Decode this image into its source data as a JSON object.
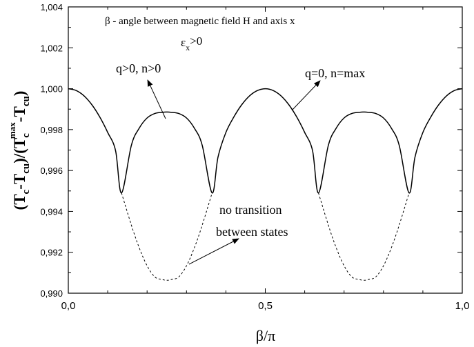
{
  "chart_data": {
    "type": "line",
    "ylabel": "(Tc-Tcu)/(Tc^max-Tcu)",
    "ylabel_parts": {
      "open": "(T",
      "sub1": "c",
      "mid1": "-T",
      "sub2": "cu",
      "mid2": ")/(T",
      "sub3": "c",
      "sup3": "max",
      "mid3": "-T",
      "sub4": "cu",
      "close": ")"
    },
    "xlabel": "β/π",
    "xlim": [
      0,
      1
    ],
    "ylim": [
      0.99,
      1.004
    ],
    "x_ticks": [
      0,
      0.5,
      1
    ],
    "x_tick_labels": [
      "0,0",
      "0,5",
      "1,0"
    ],
    "y_ticks": [
      0.99,
      0.992,
      0.994,
      0.996,
      0.998,
      1.0,
      1.002,
      1.004
    ],
    "y_tick_labels": [
      "0,990",
      "0,992",
      "0,994",
      "0,996",
      "0,998",
      "1,000",
      "1,002",
      "1,004"
    ],
    "series": [
      {
        "style": "solid",
        "color": "#000000",
        "x": [
          0,
          0.02,
          0.04,
          0.06,
          0.08,
          0.1,
          0.12,
          0.135,
          0.16,
          0.18,
          0.2,
          0.22,
          0.24,
          0.25,
          0.26,
          0.28,
          0.3,
          0.32,
          0.34,
          0.365,
          0.38,
          0.4,
          0.42,
          0.44,
          0.46,
          0.48,
          0.5,
          0.52,
          0.54,
          0.56,
          0.58,
          0.6,
          0.62,
          0.635,
          0.66,
          0.68,
          0.7,
          0.72,
          0.74,
          0.75,
          0.76,
          0.78,
          0.8,
          0.82,
          0.84,
          0.865,
          0.88,
          0.9,
          0.92,
          0.94,
          0.96,
          0.98,
          1.0
        ],
        "y": [
          1.0,
          0.99991,
          0.99965,
          0.99921,
          0.99861,
          0.99786,
          0.99697,
          0.9949,
          0.99723,
          0.99807,
          0.99857,
          0.99879,
          0.99885,
          0.99886,
          0.99885,
          0.99879,
          0.99857,
          0.99807,
          0.99723,
          0.9949,
          0.99666,
          0.99786,
          0.99861,
          0.99921,
          0.99965,
          0.99991,
          1.0,
          0.99991,
          0.99965,
          0.99921,
          0.99861,
          0.99786,
          0.99697,
          0.9949,
          0.99723,
          0.99807,
          0.99857,
          0.99879,
          0.99885,
          0.99886,
          0.99885,
          0.99879,
          0.99857,
          0.99807,
          0.99723,
          0.9949,
          0.99666,
          0.99786,
          0.99861,
          0.99921,
          0.99965,
          0.99991,
          1.0
        ]
      },
      {
        "style": "dashed",
        "color": "#000000",
        "x": [
          0.135,
          0.16,
          0.18,
          0.2,
          0.22,
          0.24,
          0.25,
          0.26,
          0.28,
          0.3,
          0.32,
          0.34,
          0.365
        ],
        "y": [
          0.9949,
          0.99333,
          0.99222,
          0.99134,
          0.99079,
          0.99066,
          0.99063,
          0.99066,
          0.99079,
          0.99134,
          0.99222,
          0.99333,
          0.9949
        ]
      },
      {
        "style": "dashed",
        "color": "#000000",
        "x": [
          0.635,
          0.66,
          0.68,
          0.7,
          0.72,
          0.74,
          0.75,
          0.76,
          0.78,
          0.8,
          0.82,
          0.84,
          0.865
        ],
        "y": [
          0.9949,
          0.99333,
          0.99222,
          0.99134,
          0.99079,
          0.99066,
          0.99063,
          0.99066,
          0.99079,
          0.99134,
          0.99222,
          0.99333,
          0.9949
        ]
      }
    ],
    "annotations": {
      "title": "β - angle between magnetic field H and axis x",
      "eps_main": "ε",
      "eps_sub": "x",
      "eps_rest": ">0",
      "label_q_pos": "q>0, n>0",
      "label_q_zero": "q=0, n=max",
      "label_no_transition_1": "no transition",
      "label_no_transition_2": "between states"
    }
  }
}
